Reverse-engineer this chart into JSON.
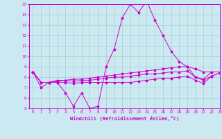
{
  "xlabel": "Windchill (Refroidissement éolien,°C)",
  "background_color": "#cce8f0",
  "line_color": "#cc00cc",
  "xlim": [
    -0.5,
    23
  ],
  "ylim": [
    5,
    15
  ],
  "xticks": [
    0,
    1,
    2,
    3,
    4,
    5,
    6,
    7,
    8,
    9,
    10,
    11,
    12,
    13,
    14,
    15,
    16,
    17,
    18,
    19,
    20,
    21,
    22,
    23
  ],
  "yticks": [
    5,
    6,
    7,
    8,
    9,
    10,
    11,
    12,
    13,
    14,
    15
  ],
  "series": [
    [
      8.5,
      7.0,
      7.5,
      7.5,
      6.5,
      5.2,
      6.5,
      5.0,
      5.2,
      9.0,
      10.7,
      13.7,
      15.0,
      14.2,
      15.3,
      13.5,
      12.0,
      10.5,
      9.5,
      9.0,
      8.0,
      7.8,
      8.5,
      8.5
    ],
    [
      8.5,
      7.5,
      7.5,
      7.7,
      7.7,
      7.8,
      7.8,
      7.9,
      8.0,
      8.1,
      8.2,
      8.3,
      8.4,
      8.5,
      8.6,
      8.7,
      8.8,
      8.9,
      9.0,
      9.0,
      8.8,
      8.5,
      8.5,
      8.5
    ],
    [
      8.5,
      7.5,
      7.5,
      7.6,
      7.7,
      7.6,
      7.7,
      7.7,
      7.8,
      7.9,
      8.0,
      8.0,
      8.1,
      8.2,
      8.3,
      8.3,
      8.4,
      8.5,
      8.5,
      8.6,
      8.0,
      7.7,
      8.1,
      8.4
    ],
    [
      8.5,
      7.5,
      7.5,
      7.5,
      7.5,
      7.4,
      7.5,
      7.5,
      7.5,
      7.5,
      7.5,
      7.5,
      7.5,
      7.6,
      7.7,
      7.8,
      7.9,
      7.9,
      8.0,
      8.1,
      7.7,
      7.4,
      8.1,
      8.4
    ]
  ]
}
